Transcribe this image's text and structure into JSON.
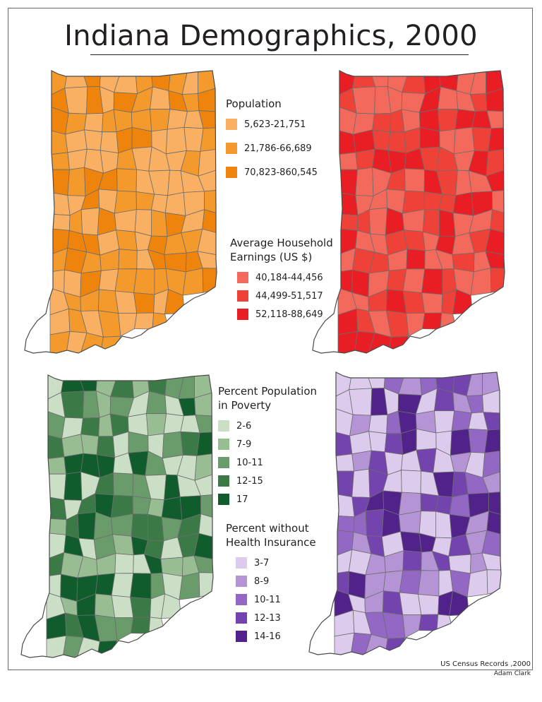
{
  "title": "Indiana Demographics, 2000",
  "maps": [
    {
      "id": "population",
      "title_lines": [
        "Population"
      ],
      "classes": [
        {
          "label": "5,623-21,751",
          "color": "#f9b063"
        },
        {
          "label": "21,786-66,689",
          "color": "#f49a2c"
        },
        {
          "label": "70,823-860,545",
          "color": "#ef840c"
        }
      ]
    },
    {
      "id": "earnings",
      "title_lines": [
        "Average Household",
        "Earnings (US $)"
      ],
      "classes": [
        {
          "label": "40,184-44,456",
          "color": "#f36a5d"
        },
        {
          "label": "44,499-51,517",
          "color": "#ee4238"
        },
        {
          "label": "52,118-88,649",
          "color": "#e91d24"
        }
      ]
    },
    {
      "id": "poverty",
      "title_lines": [
        "Percent Population",
        "in Poverty"
      ],
      "classes": [
        {
          "label": "2-6",
          "color": "#cadfc6"
        },
        {
          "label": "7-9",
          "color": "#99bd92"
        },
        {
          "label": "10-11",
          "color": "#6a9c6b"
        },
        {
          "label": "12-15",
          "color": "#3b7a47"
        },
        {
          "label": "17",
          "color": "#115c2c"
        }
      ]
    },
    {
      "id": "insurance",
      "title_lines": [
        "Percent without",
        "Health Insurance"
      ],
      "classes": [
        {
          "label": "3-7",
          "color": "#dccbec"
        },
        {
          "label": "8-9",
          "color": "#b594d6"
        },
        {
          "label": "10-11",
          "color": "#9368c4"
        },
        {
          "label": "12-13",
          "color": "#7343ae"
        },
        {
          "label": "14-16",
          "color": "#52228b"
        }
      ]
    }
  ],
  "source": "US Census Records ,2000",
  "author": "Adam Clark"
}
